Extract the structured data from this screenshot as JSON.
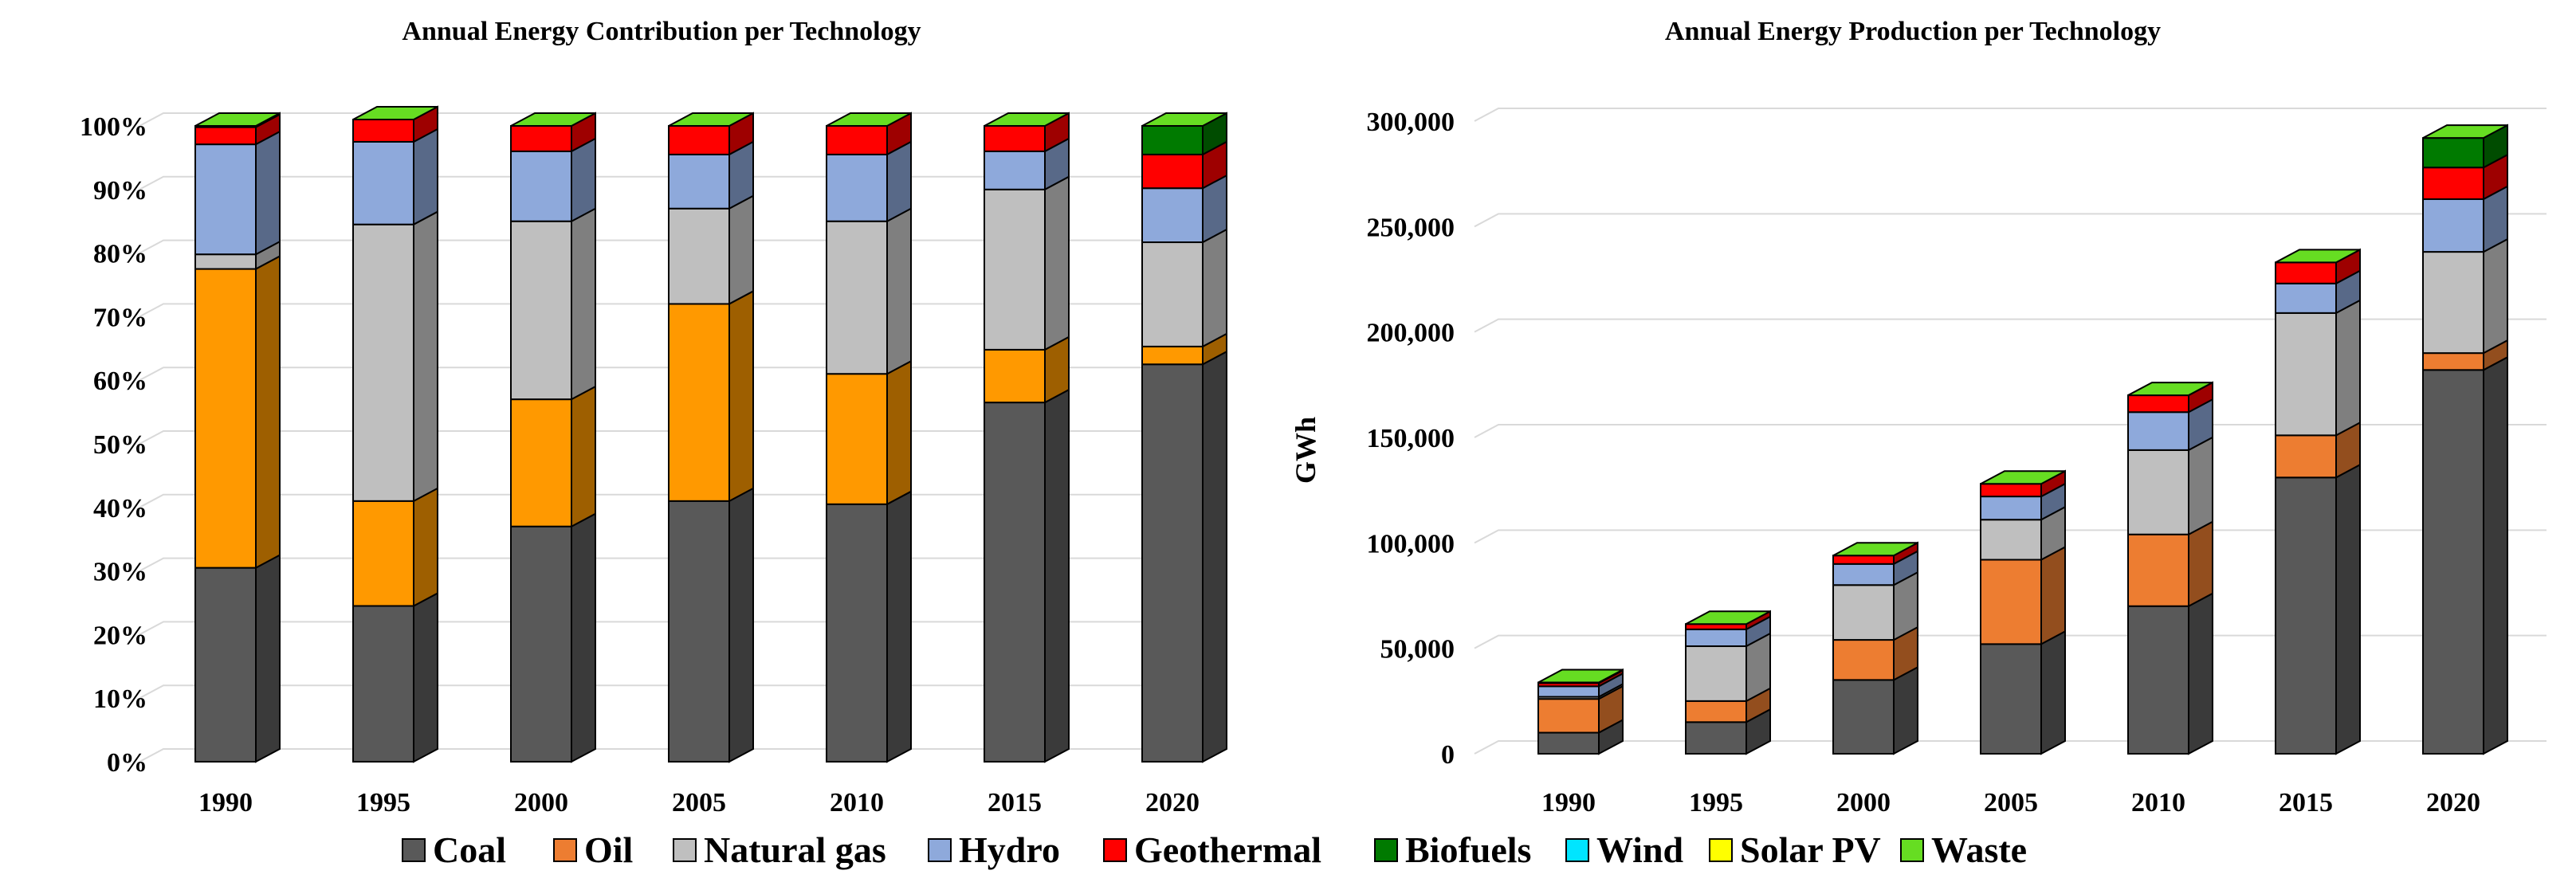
{
  "technologies": [
    "Coal",
    "Oil",
    "Natural gas",
    "Hydro",
    "Geothermal",
    "Biofuels",
    "Wind",
    "Solar PV",
    "Waste"
  ],
  "colors": {
    "Coal": "#595959",
    "Oil": "#ED7D31",
    "Oil_left": "#FF9900",
    "Natural gas": "#BFBFBF",
    "Natural gas_right": "#A6A6A6",
    "Hydro": "#8EA9DB",
    "Geothermal": "#FF0000",
    "Biofuels": "#007A00",
    "Wind": "#00E5FF",
    "Solar PV": "#FFFF00",
    "Waste": "#66DD22"
  },
  "chart_data": [
    {
      "type": "bar",
      "stacked": true,
      "percent": true,
      "title": "Annual Energy Contribution per Technology",
      "xlabel": "",
      "ylabel": "",
      "ylim": [
        0,
        100
      ],
      "yticks": [
        "0%",
        "10%",
        "20%",
        "30%",
        "40%",
        "50%",
        "60%",
        "70%",
        "80%",
        "90%",
        "100%"
      ],
      "categories": [
        "1990",
        "1995",
        "2000",
        "2005",
        "2010",
        "2015",
        "2020"
      ],
      "series": [
        {
          "name": "Coal",
          "values": [
            30.5,
            24.5,
            37,
            41,
            40.5,
            56.5,
            62.5
          ]
        },
        {
          "name": "Oil",
          "values": [
            47,
            16.5,
            20,
            31,
            20.5,
            8.3,
            2.8
          ]
        },
        {
          "name": "Natural gas",
          "values": [
            2.3,
            43.5,
            28,
            15,
            24,
            25.2,
            16.4
          ]
        },
        {
          "name": "Hydro",
          "values": [
            17.3,
            13,
            11,
            8.5,
            10.5,
            6,
            8.5
          ]
        },
        {
          "name": "Geothermal",
          "values": [
            2.7,
            3.5,
            4,
            4.5,
            4.5,
            4,
            5.3
          ]
        },
        {
          "name": "Biofuels",
          "values": [
            0,
            0,
            0,
            0,
            0,
            0,
            4.5
          ]
        },
        {
          "name": "Wind",
          "values": [
            0,
            0,
            0,
            0,
            0,
            0,
            0
          ]
        },
        {
          "name": "Solar PV",
          "values": [
            0,
            0,
            0,
            0,
            0,
            0,
            0
          ]
        },
        {
          "name": "Waste",
          "values": [
            0.2,
            0,
            0,
            0,
            0,
            0,
            0
          ]
        }
      ]
    },
    {
      "type": "bar",
      "stacked": true,
      "percent": false,
      "title": "Annual Energy Production per Technology",
      "xlabel": "",
      "ylabel": "GWh",
      "ylim": [
        0,
        300000
      ],
      "yticks": [
        "0",
        "50,000",
        "100,000",
        "150,000",
        "200,000",
        "250,000",
        "300,000"
      ],
      "categories": [
        "1990",
        "1995",
        "2000",
        "2005",
        "2010",
        "2015",
        "2020"
      ],
      "series": [
        {
          "name": "Coal",
          "values": [
            10000,
            15000,
            35000,
            52000,
            70000,
            131000,
            182000
          ]
        },
        {
          "name": "Oil",
          "values": [
            16000,
            10000,
            19000,
            40000,
            34000,
            20000,
            8000
          ]
        },
        {
          "name": "Natural gas",
          "values": [
            1000,
            26000,
            26000,
            19000,
            40000,
            58000,
            48000
          ]
        },
        {
          "name": "Hydro",
          "values": [
            5000,
            8000,
            10000,
            11000,
            18000,
            14000,
            25000
          ]
        },
        {
          "name": "Geothermal",
          "values": [
            1500,
            2500,
            4000,
            6000,
            8000,
            10000,
            15000
          ]
        },
        {
          "name": "Biofuels",
          "values": [
            0,
            0,
            0,
            0,
            0,
            0,
            14000
          ]
        },
        {
          "name": "Wind",
          "values": [
            0,
            0,
            0,
            0,
            0,
            0,
            0
          ]
        },
        {
          "name": "Solar PV",
          "values": [
            0,
            0,
            0,
            0,
            0,
            0,
            0
          ]
        },
        {
          "name": "Waste",
          "values": [
            300,
            0,
            0,
            0,
            0,
            0,
            0
          ]
        }
      ]
    }
  ]
}
